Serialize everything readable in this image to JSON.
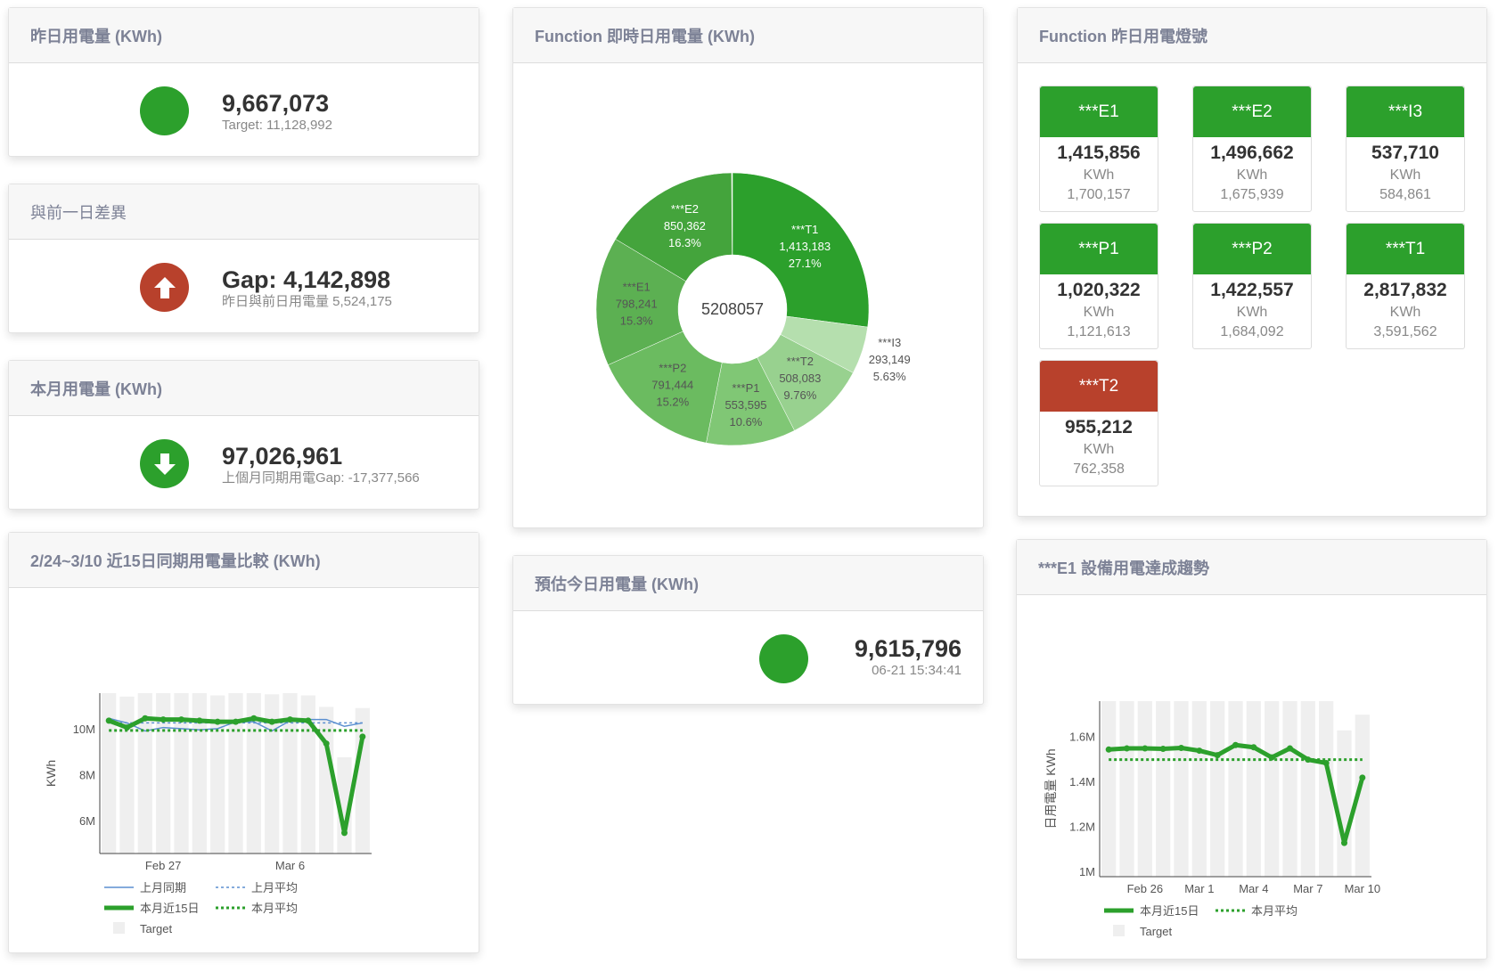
{
  "colors": {
    "green": "#2ca02c",
    "red": "#b8412c",
    "target": "#efefef",
    "last_month": "#5b8fd0"
  },
  "yesterday": {
    "title": "昨日用電量 (KWh)",
    "value": "9,667,073",
    "sub": "Target: 11,128,992",
    "status": "green",
    "icon": "circle-icon"
  },
  "gap": {
    "title": "與前一日差異",
    "value": "Gap: 4,142,898",
    "sub": "昨日與前日用電量 5,524,175",
    "status": "red",
    "icon": "arrow-up-icon"
  },
  "month": {
    "title": "本月用電量 (KWh)",
    "value": "97,026,961",
    "sub": "上個月同期用電Gap: -17,377,566",
    "status": "green",
    "icon": "arrow-down-icon"
  },
  "donut": {
    "title": "Function 即時日用電量 (KWh)",
    "center": "5208057",
    "slices": [
      {
        "name": "***T1",
        "value": "1,413,183",
        "pct": 27.1,
        "pct_label": "27.1%",
        "color": "#2ca02c"
      },
      {
        "name": "***I3",
        "value": "293,149",
        "pct": 5.63,
        "pct_label": "5.63%",
        "color": "#b5dfae"
      },
      {
        "name": "***T2",
        "value": "508,083",
        "pct": 9.76,
        "pct_label": "9.76%",
        "color": "#98d18f"
      },
      {
        "name": "***P1",
        "value": "553,595",
        "pct": 10.6,
        "pct_label": "10.6%",
        "color": "#80c775"
      },
      {
        "name": "***P2",
        "value": "791,444",
        "pct": 15.2,
        "pct_label": "15.2%",
        "color": "#6bbb60"
      },
      {
        "name": "***E1",
        "value": "798,241",
        "pct": 15.3,
        "pct_label": "15.3%",
        "color": "#5cb052"
      },
      {
        "name": "***E2",
        "value": "850,362",
        "pct": 16.3,
        "pct_label": "16.3%",
        "color": "#44a43c"
      }
    ]
  },
  "estimate": {
    "title": "預估今日用電量 (KWh)",
    "value": "9,615,796",
    "sub": "06-21 15:34:41",
    "status": "green"
  },
  "lights": {
    "title": "Function 昨日用電燈號",
    "unit": "KWh",
    "items": [
      {
        "name": "***E1",
        "value": "1,415,856",
        "target": "1,700,157",
        "status": "green"
      },
      {
        "name": "***E2",
        "value": "1,496,662",
        "target": "1,675,939",
        "status": "green"
      },
      {
        "name": "***I3",
        "value": "537,710",
        "target": "584,861",
        "status": "green"
      },
      {
        "name": "***P1",
        "value": "1,020,322",
        "target": "1,121,613",
        "status": "green"
      },
      {
        "name": "***P2",
        "value": "1,422,557",
        "target": "1,684,092",
        "status": "green"
      },
      {
        "name": "***T1",
        "value": "2,817,832",
        "target": "3,591,562",
        "status": "green"
      },
      {
        "name": "***T2",
        "value": "955,212",
        "target": "762,358",
        "status": "red"
      }
    ]
  },
  "chart_data": [
    {
      "type": "line",
      "title": "2/24~3/10 近15日同期用電量比較 (KWh)",
      "ylabel": "KWh",
      "xlabel": "",
      "x": [
        "Feb 24",
        "Feb 25",
        "Feb 26",
        "Feb 27",
        "Feb 28",
        "Mar 1",
        "Mar 2",
        "Mar 3",
        "Mar 4",
        "Mar 5",
        "Mar 6",
        "Mar 7",
        "Mar 8",
        "Mar 9",
        "Mar 10"
      ],
      "xticks": [
        "Feb 27",
        "Mar 6"
      ],
      "yticks": [
        {
          "v": 6,
          "l": "6M"
        },
        {
          "v": 8,
          "l": "8M"
        },
        {
          "v": 10,
          "l": "10M"
        }
      ],
      "ylim": [
        4.6,
        11.6
      ],
      "unit": "M",
      "series": [
        {
          "name": "上月同期",
          "style": "thin",
          "values": [
            10.5,
            10.3,
            9.95,
            10.1,
            10.05,
            10.0,
            10.05,
            10.35,
            10.35,
            9.95,
            10.4,
            10.45,
            10.45,
            10.15,
            10.3
          ]
        },
        {
          "name": "上月平均",
          "style": "dashed",
          "values": [
            10.3,
            10.3,
            10.3,
            10.3,
            10.3,
            10.3,
            10.3,
            10.3,
            10.3,
            10.3,
            10.3,
            10.3,
            10.3,
            10.3,
            10.3
          ]
        },
        {
          "name": "本月近15日",
          "style": "thick",
          "values": [
            10.4,
            10.1,
            10.5,
            10.45,
            10.45,
            10.4,
            10.35,
            10.35,
            10.5,
            10.35,
            10.45,
            10.4,
            9.4,
            5.5,
            9.7
          ]
        },
        {
          "name": "本月平均",
          "style": "dotted",
          "values": [
            9.97,
            9.97,
            9.97,
            9.97,
            9.97,
            9.97,
            9.97,
            9.97,
            9.97,
            9.97,
            9.97,
            9.97,
            9.97,
            9.97,
            9.97
          ]
        }
      ],
      "target": {
        "name": "Target",
        "values": [
          11.6,
          11.45,
          11.6,
          11.6,
          11.6,
          11.6,
          11.5,
          11.6,
          11.6,
          11.55,
          11.6,
          11.5,
          11.0,
          8.8,
          10.95
        ]
      },
      "legend": "bottom"
    },
    {
      "type": "line",
      "title": "***E1 設備用電達成趨勢",
      "ylabel": "日用電量 KWh",
      "xlabel": "",
      "x": [
        "Feb 24",
        "Feb 25",
        "Feb 26",
        "Feb 27",
        "Feb 28",
        "Mar 1",
        "Mar 2",
        "Mar 3",
        "Mar 4",
        "Mar 5",
        "Mar 6",
        "Mar 7",
        "Mar 8",
        "Mar 9",
        "Mar 10"
      ],
      "xticks": [
        "Feb 26",
        "Mar 1",
        "Mar 4",
        "Mar 7",
        "Mar 10"
      ],
      "yticks": [
        {
          "v": 1,
          "l": "1M"
        },
        {
          "v": 1.2,
          "l": "1.2M"
        },
        {
          "v": 1.4,
          "l": "1.4M"
        },
        {
          "v": 1.6,
          "l": "1.6M"
        }
      ],
      "ylim": [
        0.98,
        1.76
      ],
      "unit": "M",
      "series": [
        {
          "name": "本月近15日",
          "style": "thick",
          "values": [
            1.545,
            1.55,
            1.55,
            1.548,
            1.552,
            1.54,
            1.52,
            1.565,
            1.555,
            1.51,
            1.55,
            1.5,
            1.485,
            1.13,
            1.42
          ]
        },
        {
          "name": "本月平均",
          "style": "dotted",
          "values": [
            1.5,
            1.5,
            1.5,
            1.5,
            1.5,
            1.5,
            1.5,
            1.5,
            1.5,
            1.5,
            1.5,
            1.5,
            1.5,
            1.5,
            1.5
          ]
        }
      ],
      "target": {
        "name": "Target",
        "values": [
          1.76,
          1.76,
          1.76,
          1.76,
          1.76,
          1.76,
          1.76,
          1.76,
          1.76,
          1.76,
          1.76,
          1.76,
          1.76,
          1.63,
          1.7
        ]
      },
      "legend": "bottom"
    }
  ]
}
